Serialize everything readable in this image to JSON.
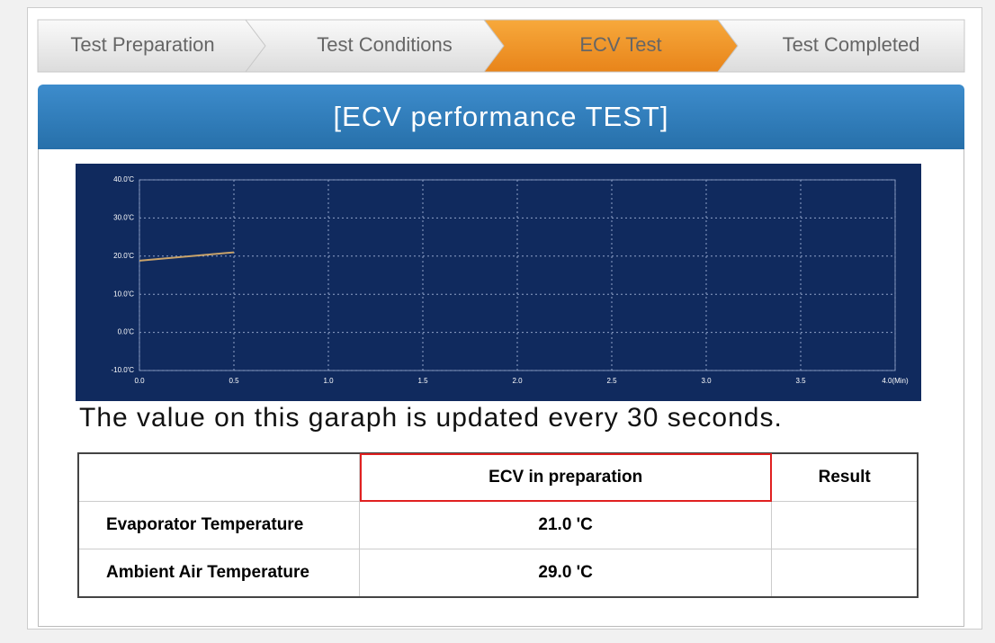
{
  "steps": [
    "Test Preparation",
    "Test Conditions",
    "ECV Test",
    "Test Completed"
  ],
  "active_step": 2,
  "panel": {
    "title": "[ECV performance TEST]"
  },
  "chart_data": {
    "type": "line",
    "x": [
      0,
      0.5
    ],
    "values": [
      18.8,
      21.0
    ],
    "color": "#c9a36a",
    "xlim": [
      0,
      4
    ],
    "ylim": [
      -10,
      40
    ],
    "xticks": [
      {
        "value": 0,
        "label": "0.0"
      },
      0.5,
      {
        "value": 1,
        "label": "1.0"
      },
      1.5,
      {
        "value": 2,
        "label": "2.0"
      },
      2.5,
      {
        "value": 3,
        "label": "3.0"
      },
      3.5,
      {
        "value": 4,
        "label": "4.0(Min)"
      }
    ],
    "yticks": [
      {
        "value": -10,
        "label": "-10.0'C"
      },
      {
        "value": 0,
        "label": "0.0'C"
      },
      {
        "value": 10,
        "label": "10.0'C"
      },
      {
        "value": 20,
        "label": "20.0'C"
      },
      {
        "value": 30,
        "label": "30.0'C"
      },
      {
        "value": 40,
        "label": "40.0'C"
      }
    ],
    "grid": true
  },
  "note": "The value on this garaph is updated every 30 seconds.",
  "table": {
    "header": [
      "ECV in preparation",
      "Result"
    ],
    "rows": [
      {
        "label": "Evaporator Temperature",
        "value": "21.0 'C"
      },
      {
        "label": "Ambient Air Temperature",
        "value": "29.0 'C"
      }
    ]
  }
}
